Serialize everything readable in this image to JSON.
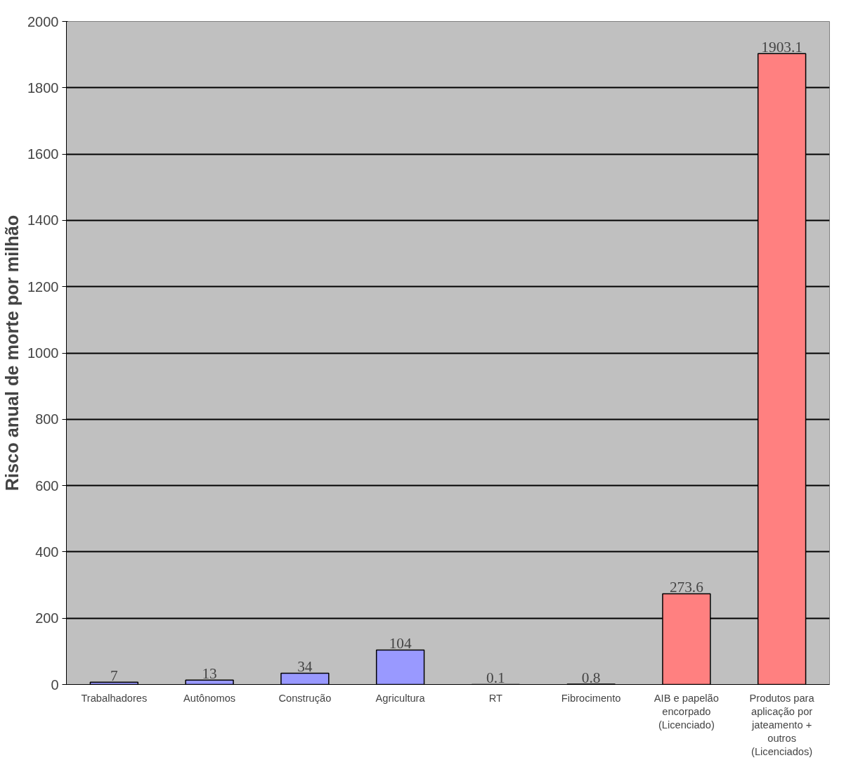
{
  "chart_data": {
    "type": "bar",
    "ylabel": "Risco anual de morte por milhão",
    "categories": [
      "Trabalhadores",
      "Autônomos",
      "Construção",
      "Agricultura",
      "RT",
      "Fibrocimento",
      "AIB e papelão encorpado (Licenciado)",
      "Produtos para aplicação por jateamento + outros (Licenciados)"
    ],
    "values": [
      7,
      13,
      34,
      104,
      0.1,
      0.8,
      273.6,
      1903.1
    ],
    "colors": [
      "#9999ff",
      "#9999ff",
      "#9999ff",
      "#9999ff",
      "#ff8080",
      "#9999ff",
      "#ff8080",
      "#ff8080"
    ],
    "ylim": [
      0,
      2000
    ],
    "yticks": [
      0,
      200,
      400,
      600,
      800,
      1000,
      1200,
      1400,
      1600,
      1800,
      2000
    ],
    "grid": "y",
    "data_labels": true
  }
}
